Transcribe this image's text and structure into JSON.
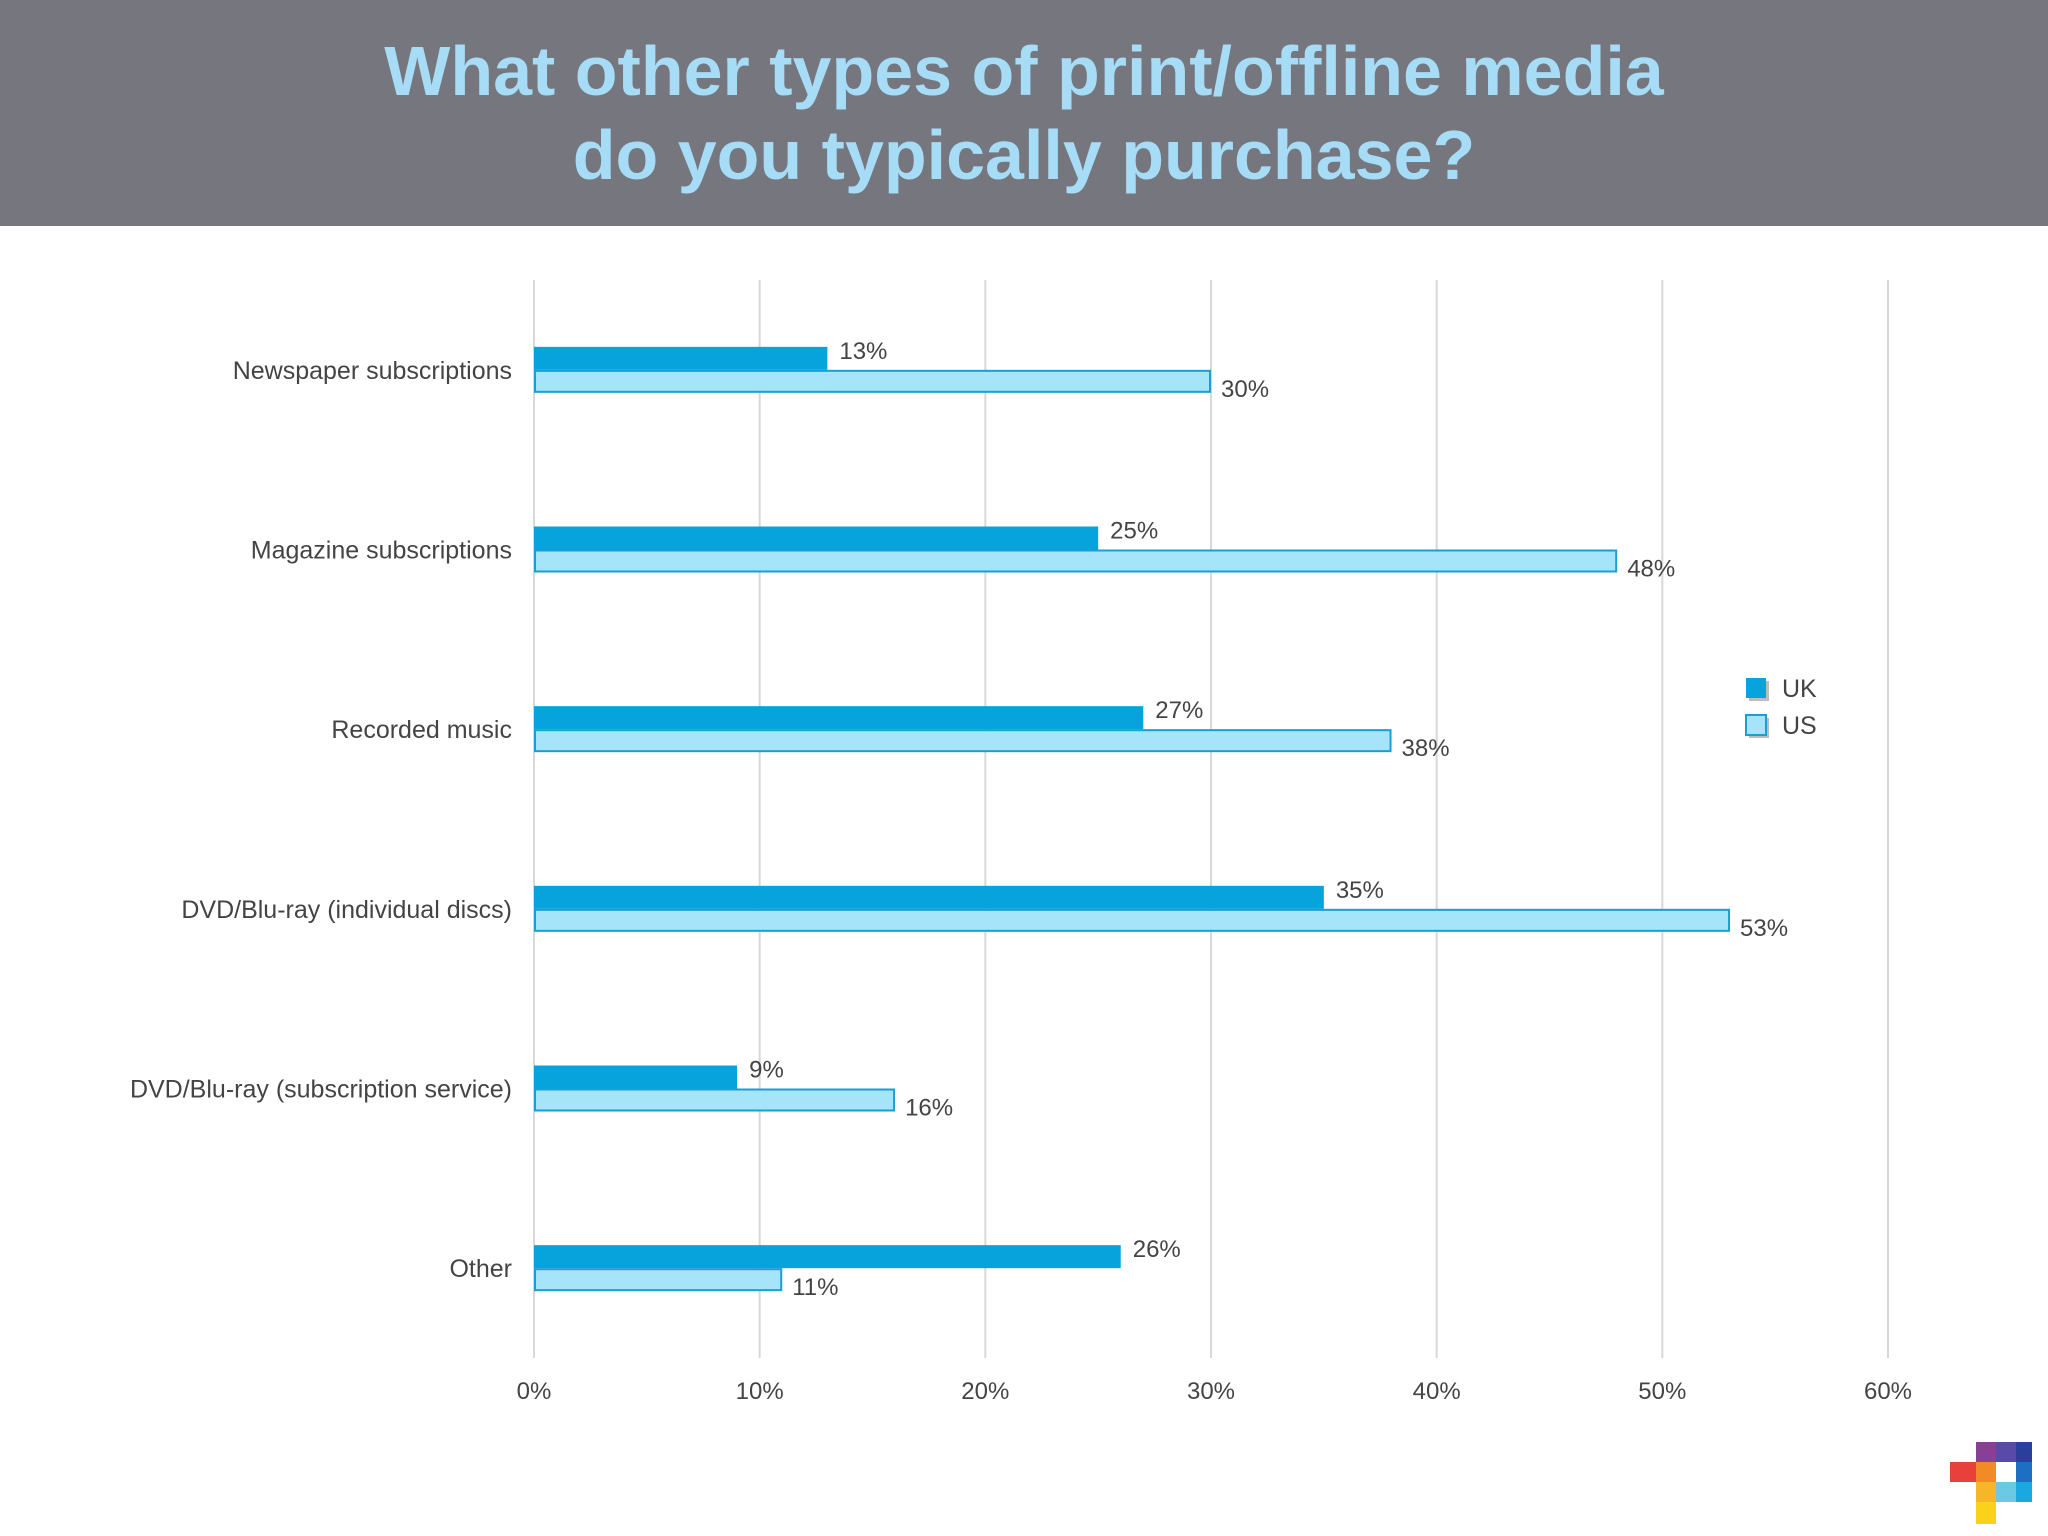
{
  "header": {
    "title_line1": "What other types of print/offline media",
    "title_line2": "do you typically purchase?"
  },
  "chart_data": {
    "type": "bar",
    "orientation": "horizontal",
    "categories": [
      "Newspaper subscriptions",
      "Magazine subscriptions",
      "Recorded music",
      "DVD/Blu-ray (individual discs)",
      "DVD/Blu-ray (subscription service)",
      "Other"
    ],
    "series": [
      {
        "name": "UK",
        "values": [
          13,
          25,
          27,
          35,
          9,
          26
        ],
        "labels": [
          "13%",
          "25%",
          "27%",
          "35%",
          "9%",
          "26%"
        ],
        "color": "#07a3dc"
      },
      {
        "name": "US",
        "values": [
          30,
          48,
          38,
          53,
          16,
          11
        ],
        "labels": [
          "30%",
          "48%",
          "38%",
          "53%",
          "16%",
          "11%"
        ],
        "color": "#a6e4fa"
      }
    ],
    "x_ticks": [
      "0%",
      "10%",
      "20%",
      "30%",
      "40%",
      "50%",
      "60%"
    ],
    "xlim": [
      0,
      60
    ],
    "grid": true,
    "legend_position": "right"
  },
  "colors": {
    "header_bg": "#75767e",
    "title": "#a6dcf6",
    "uk": "#07a3dc",
    "us": "#a6e4fa",
    "us_border": "#1a9fd4",
    "grid": "#d8d8d8",
    "text": "#444444"
  }
}
